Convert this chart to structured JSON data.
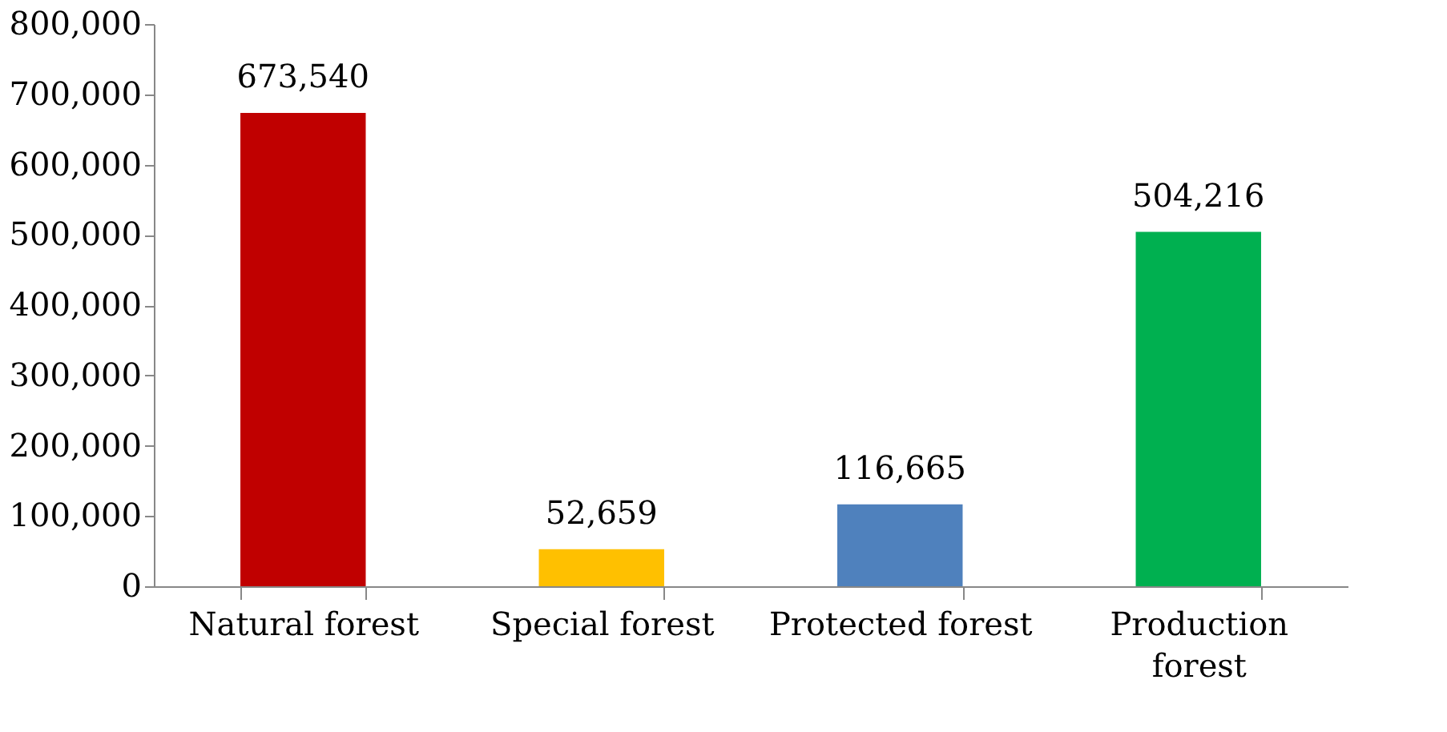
{
  "chart_data": {
    "type": "bar",
    "categories": [
      "Natural forest",
      "Special forest",
      "Protected forest",
      "Production forest"
    ],
    "values": [
      673540,
      52659,
      116665,
      504216
    ],
    "colors": [
      "#c00000",
      "#ffc000",
      "#4f81bd",
      "#00b050"
    ],
    "ylim": [
      0,
      800000
    ],
    "yticks": [
      {
        "value": 0,
        "label": "0"
      },
      {
        "value": 100000,
        "label": "100,000"
      },
      {
        "value": 200000,
        "label": "200,000"
      },
      {
        "value": 300000,
        "label": "300,000"
      },
      {
        "value": 400000,
        "label": "400,000"
      },
      {
        "value": 500000,
        "label": "500,000"
      },
      {
        "value": 600000,
        "label": "600,000"
      },
      {
        "value": 700000,
        "label": "700,000"
      },
      {
        "value": 800000,
        "label": "800,000"
      }
    ],
    "value_labels": [
      "673,540",
      "52,659",
      "116,665",
      "504,216"
    ],
    "grid": false
  }
}
